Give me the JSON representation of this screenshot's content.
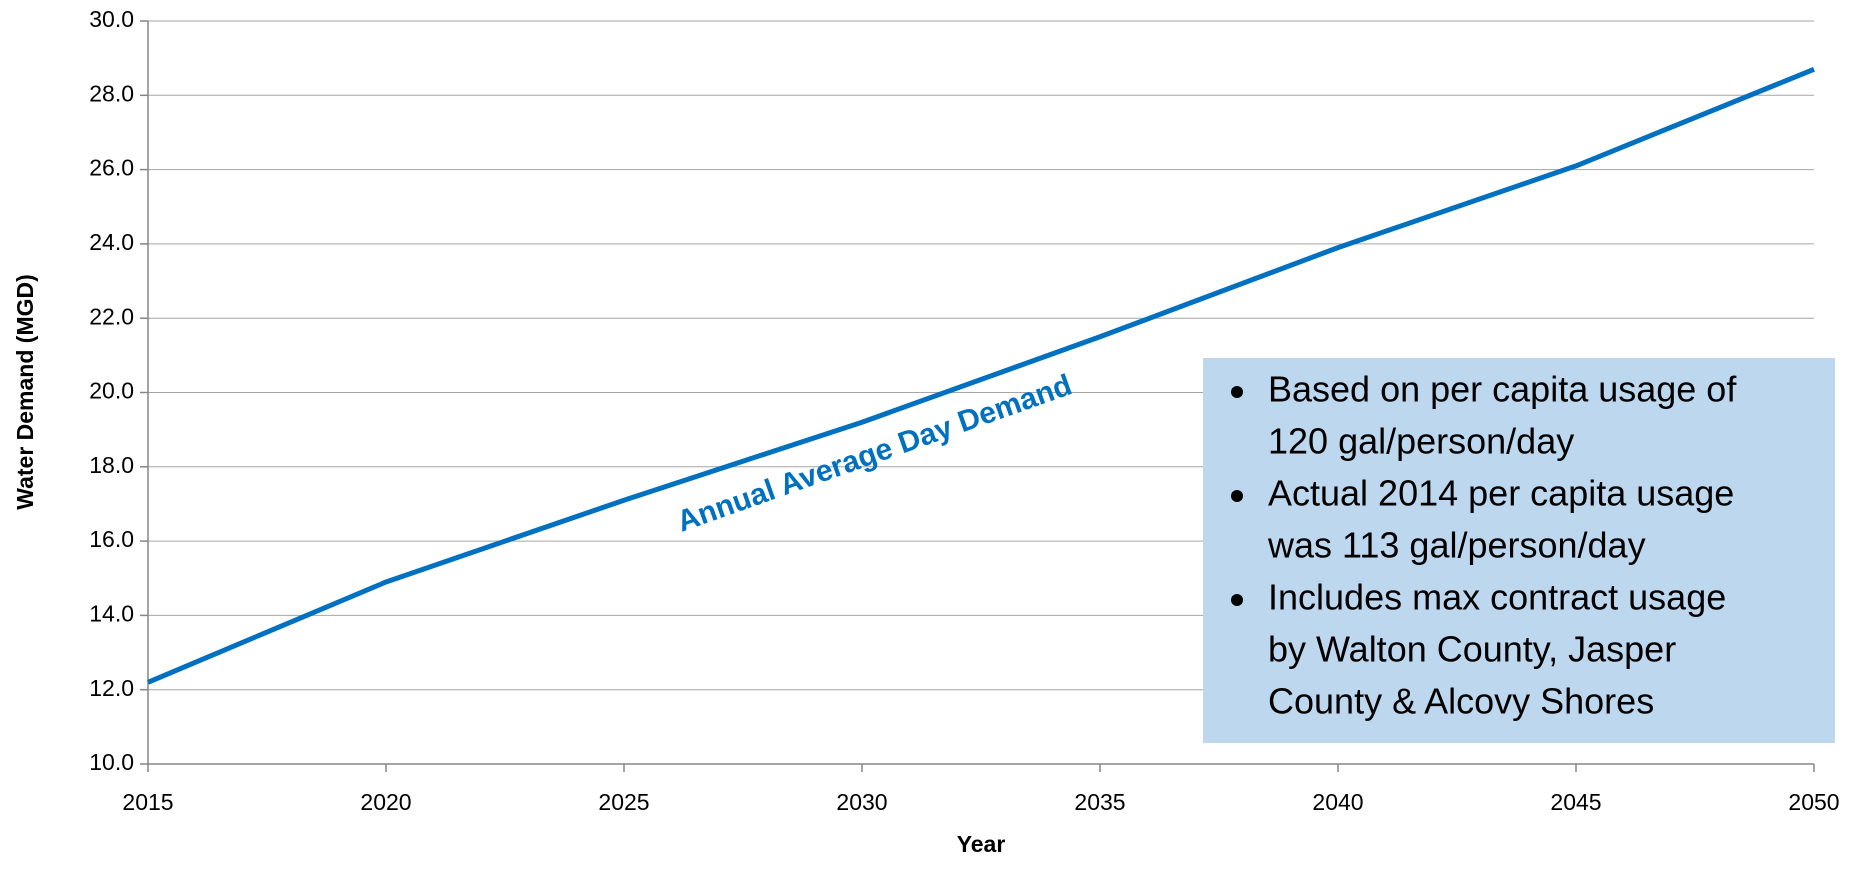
{
  "chart_data": {
    "type": "line",
    "x": [
      2015,
      2020,
      2025,
      2030,
      2035,
      2040,
      2045,
      2050
    ],
    "series": [
      {
        "name": "Annual Average Day Demand",
        "color": "#0070c0",
        "values": [
          12.2,
          14.9,
          17.1,
          19.2,
          21.5,
          23.9,
          26.1,
          28.7
        ]
      }
    ],
    "xlim": [
      2015,
      2050
    ],
    "xticks": [
      2015,
      2020,
      2025,
      2030,
      2035,
      2040,
      2045,
      2050
    ],
    "ylim": [
      10,
      30
    ],
    "yticks": [
      {
        "value": 10,
        "label": "10.0"
      },
      {
        "value": 12,
        "label": "12.0"
      },
      {
        "value": 14,
        "label": "14.0"
      },
      {
        "value": 16,
        "label": "16.0"
      },
      {
        "value": 18,
        "label": "18.0"
      },
      {
        "value": 20,
        "label": "20.0"
      },
      {
        "value": 22,
        "label": "22.0"
      },
      {
        "value": 24,
        "label": "24.0"
      },
      {
        "value": 26,
        "label": "26.0"
      },
      {
        "value": 28,
        "label": "28.0"
      },
      {
        "value": 30,
        "label": "30.0"
      }
    ],
    "grid": true,
    "xlabel": "Year",
    "ylabel": "Water Demand (MGD)",
    "notes": [
      [
        "Based on per capita usage of",
        "120 gal/person/day"
      ],
      [
        "Actual 2014 per capita usage",
        "was 113 gal/person/day"
      ],
      [
        "Includes max contract usage",
        "by Walton County, Jasper",
        "County & Alcovy Shores"
      ]
    ]
  }
}
